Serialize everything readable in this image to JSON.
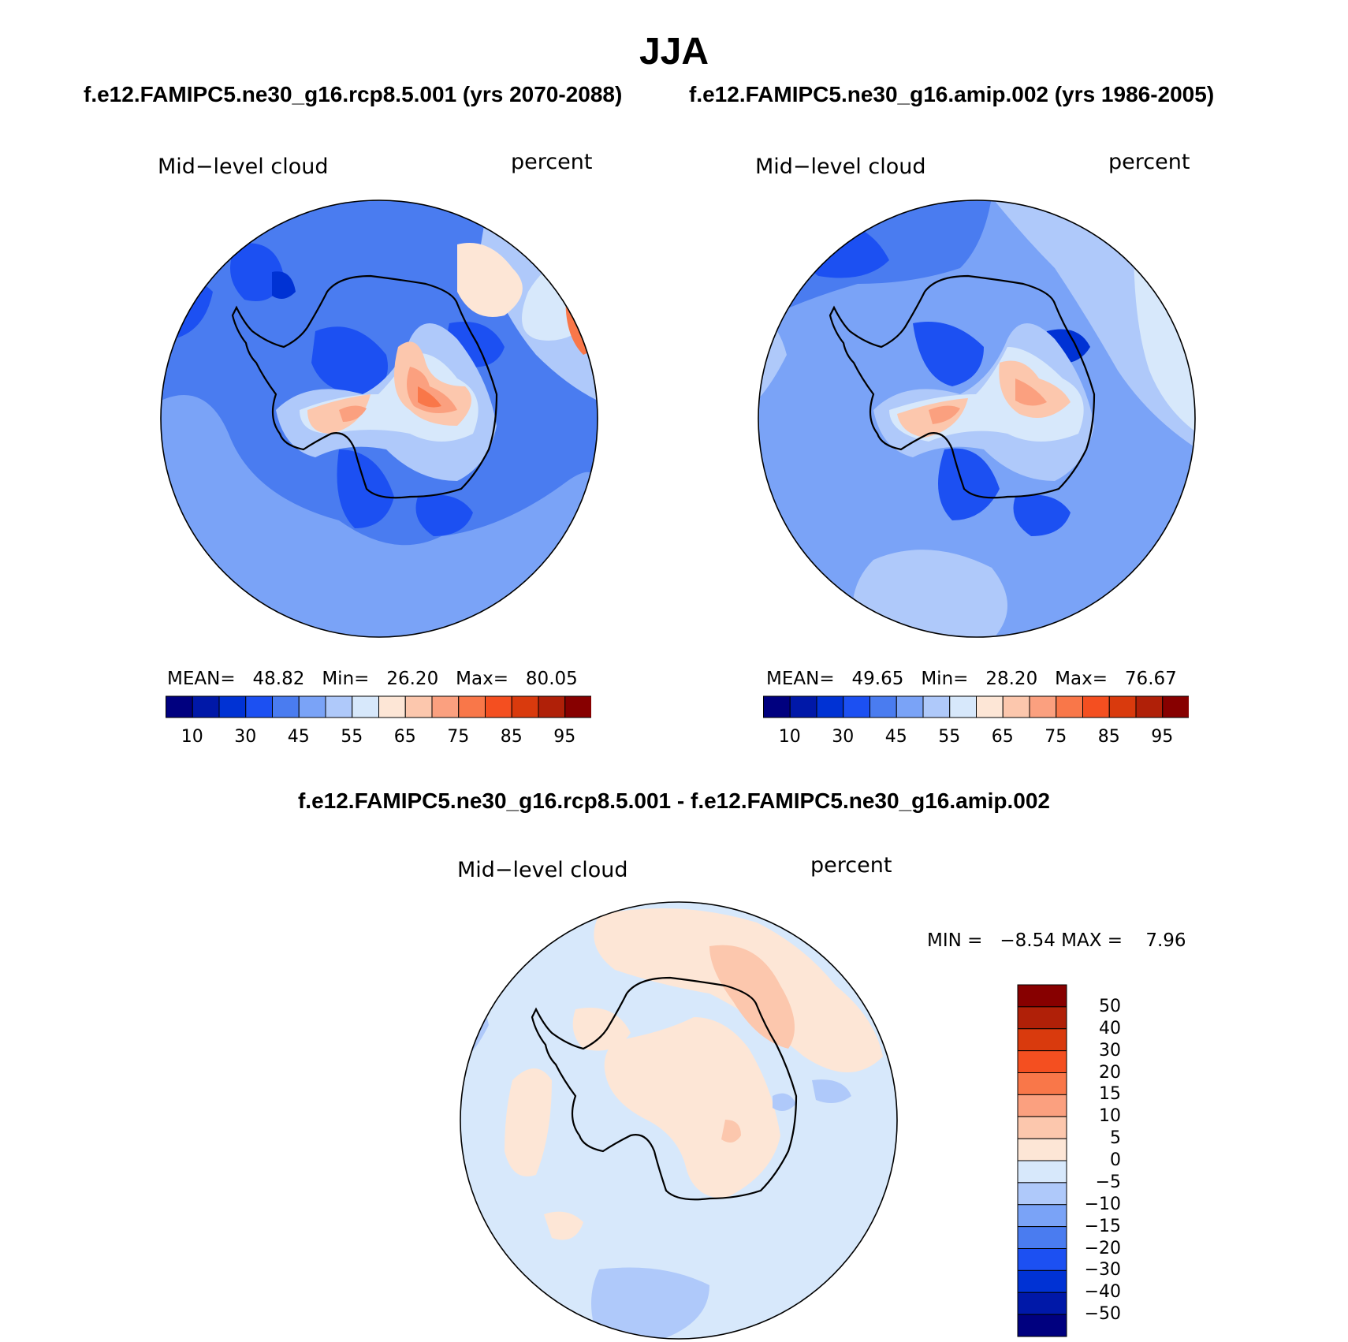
{
  "title": "JJA",
  "case1": {
    "label": "f.e12.FAMIPC5.ne30_g16.rcp8.5.001 (yrs 2070-2088)"
  },
  "case2": {
    "label": "f.e12.FAMIPC5.ne30_g16.amip.002 (yrs 1986-2005)"
  },
  "diff_title": "f.e12.FAMIPC5.ne30_g16.rcp8.5.001 - f.e12.FAMIPC5.ne30_g16.amip.002",
  "panels": [
    {
      "variable": "Mid−level cloud",
      "units": "percent",
      "stats": {
        "mean_label": "MEAN=",
        "mean": "48.82",
        "min_label": "Min=",
        "min": "26.20",
        "max_label": "Max=",
        "max": "80.05"
      }
    },
    {
      "variable": "Mid−level cloud",
      "units": "percent",
      "stats": {
        "mean_label": "MEAN=",
        "mean": "49.65",
        "min_label": "Min=",
        "min": "28.20",
        "max_label": "Max=",
        "max": "76.67"
      }
    },
    {
      "variable": "Mid−level cloud",
      "units": "percent",
      "stats": {
        "min_label": "MIN =",
        "min": "−8.54",
        "max_label": "MAX =",
        "max": "7.96"
      }
    }
  ],
  "colorbar_abs": {
    "colors": [
      "#00007f",
      "#0018a8",
      "#0032d4",
      "#1c50f2",
      "#4a7cf0",
      "#7aa3f7",
      "#afc9fa",
      "#d7e8fb",
      "#fde6d6",
      "#fcc7ad",
      "#fba07f",
      "#f97749",
      "#f44f20",
      "#d93a0d",
      "#b02008",
      "#870000"
    ],
    "tick_labels": [
      "10",
      "30",
      "45",
      "55",
      "65",
      "75",
      "85",
      "95"
    ]
  },
  "colorbar_diff": {
    "colors": [
      "#870000",
      "#b02008",
      "#d93a0d",
      "#f44f20",
      "#f97749",
      "#fba07f",
      "#fcc7ad",
      "#fde6d6",
      "#d7e8fb",
      "#afc9fa",
      "#7aa3f7",
      "#4a7cf0",
      "#1c50f2",
      "#0032d4",
      "#0018a8",
      "#00007f"
    ],
    "tick_labels": [
      "50",
      "40",
      "30",
      "20",
      "15",
      "10",
      "5",
      "0",
      "−5",
      "−10",
      "−15",
      "−20",
      "−30",
      "−40",
      "−50"
    ]
  }
}
